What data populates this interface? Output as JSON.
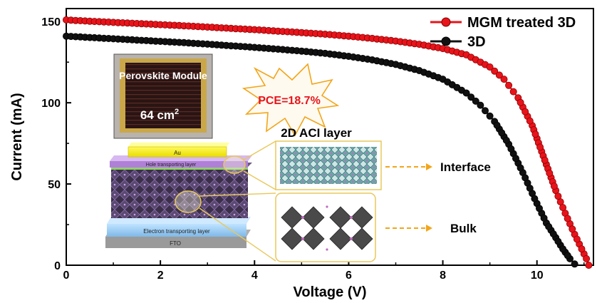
{
  "chart_data": {
    "type": "line",
    "xlabel": "Voltage (V)",
    "ylabel": "Current (mA)",
    "xlim": [
      0,
      11.2
    ],
    "ylim": [
      0,
      158
    ],
    "xticks": [
      0,
      2,
      4,
      6,
      8,
      10
    ],
    "yticks": [
      0,
      50,
      100,
      150
    ],
    "legend_position": "top-right",
    "series": [
      {
        "name": "MGM treated 3D",
        "color": "#e8141b",
        "x": [
          0,
          0.5,
          1,
          1.5,
          2,
          2.5,
          3,
          3.5,
          4,
          4.5,
          5,
          5.5,
          6,
          6.5,
          7,
          7.5,
          8,
          8.5,
          9,
          9.3,
          9.6,
          9.9,
          10.2,
          10.4,
          10.6,
          10.8,
          10.95,
          11.05,
          11.1
        ],
        "y": [
          151,
          150.2,
          149.5,
          148.8,
          148.1,
          147.4,
          146.6,
          145.8,
          145,
          144.1,
          143.2,
          142.2,
          141,
          139.6,
          138,
          136,
          133.4,
          129.5,
          122,
          114.5,
          103,
          86,
          62,
          46,
          32,
          19,
          10,
          4,
          0
        ]
      },
      {
        "name": "3D",
        "color": "#111111",
        "x": [
          0,
          0.5,
          1,
          1.5,
          2,
          2.5,
          3,
          3.5,
          4,
          4.5,
          5,
          5.5,
          6,
          6.5,
          7,
          7.5,
          8,
          8.5,
          8.8,
          9.1,
          9.4,
          9.7,
          9.95,
          10.2,
          10.4,
          10.55,
          10.7,
          10.78,
          10.82
        ],
        "y": [
          141,
          140.2,
          139.4,
          138.6,
          137.8,
          137,
          136.1,
          135.1,
          134.1,
          133,
          131.8,
          130.4,
          128.6,
          126.4,
          123.6,
          119.8,
          114.5,
          106,
          98.5,
          88.5,
          74.5,
          57,
          41,
          26,
          17,
          10,
          4,
          1.5,
          0
        ]
      }
    ],
    "annotations": {
      "pce_label": "PCE=18.7%",
      "module_title": "Perovskite Module",
      "module_area": "64 cm",
      "module_area_sup": "2",
      "layer_title": "2D ACI layer",
      "interface_label": "Interface",
      "bulk_label": "Bulk",
      "stack_layers": {
        "au": "Au",
        "htl": "Hole transporting layer",
        "etl": "Electron transporting layer",
        "fto": "FTO"
      }
    }
  }
}
